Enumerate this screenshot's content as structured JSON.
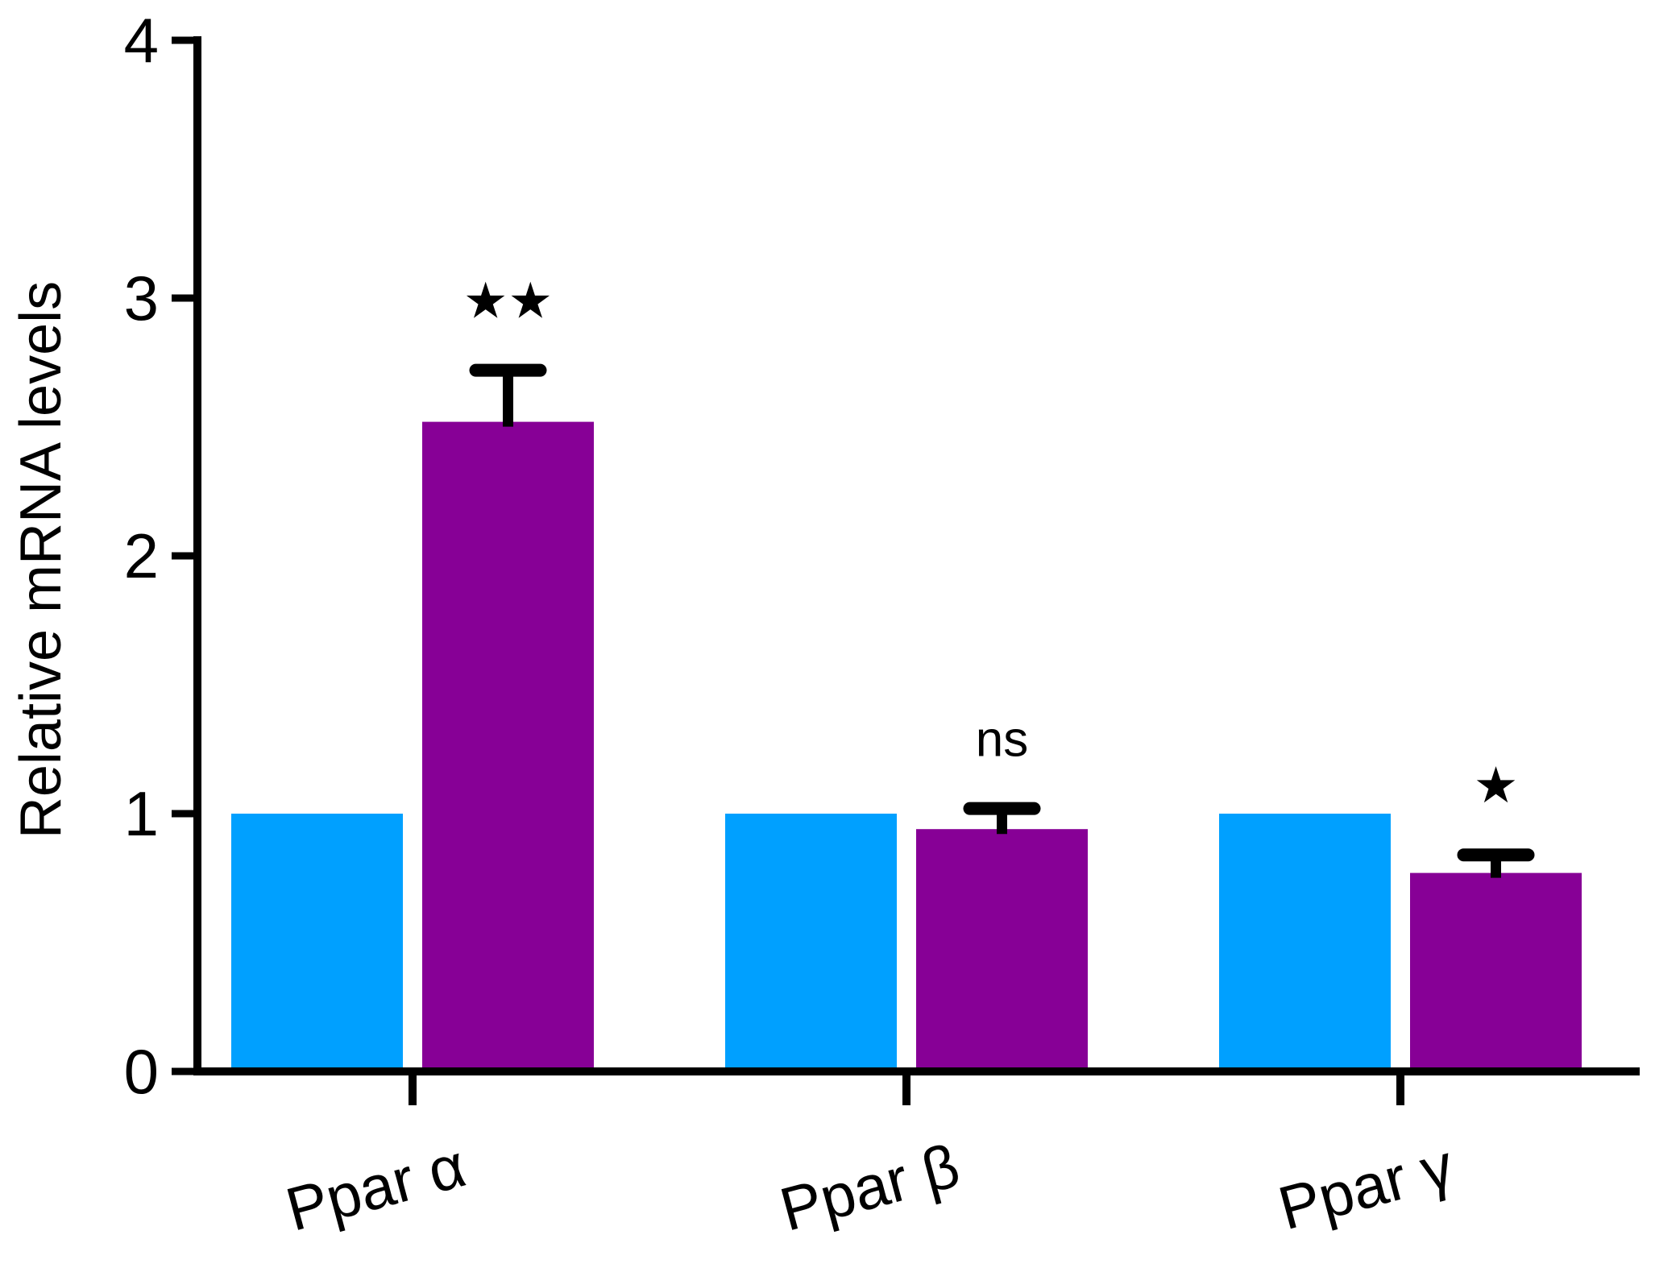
{
  "chart_data": {
    "type": "bar",
    "categories": [
      "Ppar α",
      "Ppar β",
      "Ppar γ"
    ],
    "series": [
      {
        "color": "#00a0ff",
        "values": [
          1.0,
          1.0,
          1.0
        ]
      },
      {
        "color": "#870096",
        "values": [
          2.52,
          0.94,
          0.77
        ],
        "error": [
          0.2,
          0.08,
          0.07
        ]
      }
    ],
    "significance": [
      "★★",
      "ns",
      "★"
    ],
    "title": "",
    "xlabel": "",
    "ylabel": "Relative mRNA levels",
    "ylim": [
      0,
      4
    ],
    "yticks": [
      0,
      1,
      2,
      3,
      4
    ],
    "grid": false,
    "legend": "none"
  }
}
